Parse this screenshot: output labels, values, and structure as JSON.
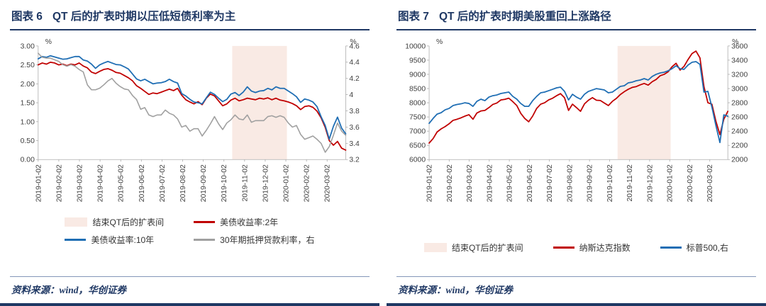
{
  "theme": {
    "navy": "#1F3864",
    "red": "#C00000",
    "blue": "#1F6EB4",
    "gray": "#A0A0A0",
    "region_pink": "#F9EAE4",
    "rule_light": "#8496B8"
  },
  "chart_data": [
    {
      "type": "line",
      "fig_label": "图表 6",
      "title": "QT 后的扩表时期以压低短债利率为主",
      "source": "资料来源：wind，华创证券",
      "x_labels": [
        "2019-01-02",
        "2019-02-02",
        "2019-03-02",
        "2019-04-02",
        "2019-05-02",
        "2019-06-02",
        "2019-07-02",
        "2019-08-02",
        "2019-09-02",
        "2019-10-02",
        "2019-11-02",
        "2019-12-02",
        "2020-01-02",
        "2020-02-02",
        "2020-03-02"
      ],
      "x_domain_months": 14.9,
      "left_axis": {
        "label": "%",
        "min": 0,
        "max": 3,
        "ticks": [
          "0.00",
          "0.50",
          "1.00",
          "1.50",
          "2.00",
          "2.50",
          "3.00"
        ]
      },
      "right_axis": {
        "label": "%",
        "min": 3.2,
        "max": 4.6,
        "ticks": [
          "3.2",
          "3.4",
          "3.6",
          "3.8",
          "4",
          "4.2",
          "4.4",
          "4.6"
        ]
      },
      "shaded_region": {
        "label": "结束QT后的扩表间",
        "x_start": 9.4,
        "x_end": 12.05,
        "color": "#F9EAE4"
      },
      "series": [
        {
          "name": "美债收益率:2年",
          "axis": "left",
          "color": "#C00000",
          "width": 1.8,
          "values": [
            2.5,
            2.55,
            2.52,
            2.57,
            2.55,
            2.5,
            2.52,
            2.48,
            2.52,
            2.5,
            2.55,
            2.47,
            2.42,
            2.31,
            2.27,
            2.33,
            2.38,
            2.4,
            2.36,
            2.3,
            2.28,
            2.22,
            2.16,
            2.08,
            1.95,
            1.88,
            1.8,
            1.72,
            1.76,
            1.74,
            1.78,
            1.82,
            1.86,
            1.82,
            1.88,
            1.7,
            1.58,
            1.52,
            1.47,
            1.53,
            1.45,
            1.62,
            1.73,
            1.68,
            1.55,
            1.42,
            1.47,
            1.57,
            1.62,
            1.55,
            1.58,
            1.62,
            1.6,
            1.58,
            1.62,
            1.6,
            1.63,
            1.58,
            1.62,
            1.57,
            1.55,
            1.52,
            1.48,
            1.42,
            1.32,
            1.4,
            1.42,
            1.38,
            1.28,
            1.1,
            0.85,
            0.5,
            0.38,
            0.48,
            0.3,
            0.25
          ]
        },
        {
          "name": "美债收益率:10年",
          "axis": "left",
          "color": "#1F6EB4",
          "width": 1.8,
          "values": [
            2.66,
            2.72,
            2.7,
            2.74,
            2.71,
            2.68,
            2.65,
            2.66,
            2.69,
            2.72,
            2.72,
            2.63,
            2.6,
            2.52,
            2.41,
            2.5,
            2.55,
            2.59,
            2.55,
            2.51,
            2.5,
            2.45,
            2.39,
            2.26,
            2.13,
            2.08,
            2.12,
            2.06,
            2.0,
            2.02,
            2.03,
            2.06,
            2.12,
            2.06,
            2.02,
            1.74,
            1.68,
            1.59,
            1.52,
            1.5,
            1.47,
            1.63,
            1.78,
            1.72,
            1.62,
            1.53,
            1.59,
            1.73,
            1.77,
            1.69,
            1.78,
            1.92,
            1.81,
            1.77,
            1.81,
            1.82,
            1.88,
            1.84,
            1.92,
            1.88,
            1.88,
            1.81,
            1.74,
            1.66,
            1.51,
            1.6,
            1.57,
            1.52,
            1.4,
            1.13,
            0.9,
            0.54,
            0.88,
            1.12,
            0.83,
            0.68
          ]
        },
        {
          "name": "30年期抵押贷款利率，右",
          "axis": "right",
          "color": "#A0A0A0",
          "width": 1.6,
          "values": [
            4.51,
            4.46,
            4.45,
            4.45,
            4.43,
            4.41,
            4.37,
            4.35,
            4.37,
            4.35,
            4.31,
            4.28,
            4.12,
            4.06,
            4.06,
            4.08,
            4.12,
            4.17,
            4.2,
            4.14,
            4.1,
            4.07,
            4.06,
            3.99,
            3.94,
            3.82,
            3.84,
            3.75,
            3.73,
            3.75,
            3.75,
            3.81,
            3.77,
            3.75,
            3.7,
            3.6,
            3.62,
            3.55,
            3.58,
            3.58,
            3.49,
            3.56,
            3.64,
            3.73,
            3.64,
            3.57,
            3.65,
            3.69,
            3.75,
            3.7,
            3.69,
            3.75,
            3.66,
            3.68,
            3.68,
            3.68,
            3.73,
            3.74,
            3.72,
            3.74,
            3.72,
            3.65,
            3.6,
            3.62,
            3.51,
            3.45,
            3.47,
            3.49,
            3.45,
            3.4,
            3.29,
            3.36,
            3.5,
            3.65,
            3.55,
            3.5
          ]
        }
      ],
      "legend_rows": [
        [
          {
            "swatch": "box",
            "color": "#F9EAE4",
            "label": "结束QT后的扩表间"
          },
          {
            "swatch": "line",
            "color": "#C00000",
            "label": "美债收益率:2年"
          }
        ],
        [
          {
            "swatch": "line",
            "color": "#1F6EB4",
            "label": "美债收益率:10年"
          },
          {
            "swatch": "line",
            "color": "#A0A0A0",
            "label": "30年期抵押贷款利率，右"
          }
        ]
      ]
    },
    {
      "type": "line",
      "fig_label": "图表 7",
      "title": "QT 后的扩表时期美股重回上涨路径",
      "source": "资料来源：wind，华创证券",
      "x_labels": [
        "2019-01-02",
        "2019-02-02",
        "2019-03-02",
        "2019-04-02",
        "2019-05-02",
        "2019-06-02",
        "2019-07-02",
        "2019-08-02",
        "2019-09-02",
        "2019-10-02",
        "2019-11-02",
        "2019-12-02",
        "2020-01-02",
        "2020-02-02",
        "2020-03-02"
      ],
      "x_domain_months": 14.9,
      "left_axis": {
        "label": "%",
        "min": 6000,
        "max": 10000,
        "ticks": [
          "6000",
          "6500",
          "7000",
          "7500",
          "8000",
          "8500",
          "9000",
          "9500",
          "10000"
        ]
      },
      "right_axis": {
        "label": "%",
        "min": 2000,
        "max": 3600,
        "ticks": [
          "2000",
          "2200",
          "2400",
          "2600",
          "2800",
          "3000",
          "3200",
          "3400",
          "3600"
        ]
      },
      "shaded_region": {
        "label": "结束QT后的扩表间",
        "x_start": 9.4,
        "x_end": 12.05,
        "color": "#F9EAE4"
      },
      "series": [
        {
          "name": "纳斯达克指数",
          "axis": "left",
          "color": "#C00000",
          "width": 1.8,
          "values": [
            6580,
            6740,
            6970,
            7080,
            7160,
            7260,
            7380,
            7420,
            7470,
            7530,
            7580,
            7420,
            7640,
            7710,
            7730,
            7830,
            7940,
            7990,
            8100,
            8120,
            8160,
            8040,
            7900,
            7630,
            7450,
            7330,
            7530,
            7800,
            7950,
            8000,
            8100,
            8160,
            8250,
            8320,
            8175,
            7730,
            7950,
            7830,
            7700,
            7960,
            8090,
            8180,
            8090,
            8080,
            7990,
            7900,
            8050,
            8150,
            8290,
            8390,
            8475,
            8540,
            8570,
            8630,
            8680,
            8620,
            8740,
            8820,
            8950,
            9000,
            9090,
            9270,
            9390,
            9150,
            9280,
            9520,
            9730,
            9820,
            9580,
            8570,
            8000,
            7950,
            7350,
            6880,
            7420,
            7700
          ]
        },
        {
          "name": "标普500,右",
          "axis": "right",
          "color": "#1F6EB4",
          "width": 1.8,
          "values": [
            2510,
            2580,
            2640,
            2660,
            2700,
            2720,
            2760,
            2775,
            2785,
            2800,
            2790,
            2750,
            2820,
            2850,
            2830,
            2880,
            2900,
            2910,
            2930,
            2940,
            2950,
            2890,
            2850,
            2790,
            2750,
            2750,
            2830,
            2890,
            2940,
            2950,
            2970,
            2990,
            3010,
            3020,
            2960,
            2840,
            2920,
            2880,
            2850,
            2920,
            2960,
            2980,
            3000,
            2990,
            2980,
            2940,
            2950,
            2990,
            3030,
            3040,
            3080,
            3090,
            3110,
            3120,
            3140,
            3120,
            3170,
            3200,
            3220,
            3230,
            3250,
            3280,
            3320,
            3280,
            3270,
            3330,
            3370,
            3380,
            3340,
            2950,
            2960,
            2740,
            2480,
            2240,
            2630,
            2610
          ]
        }
      ],
      "legend_rows": [
        [
          {
            "swatch": "box",
            "color": "#F9EAE4",
            "label": "结束QT后的扩表间"
          },
          {
            "swatch": "line",
            "color": "#C00000",
            "label": "纳斯达克指数"
          },
          {
            "swatch": "line",
            "color": "#1F6EB4",
            "label": "标普500,右"
          }
        ]
      ]
    }
  ]
}
